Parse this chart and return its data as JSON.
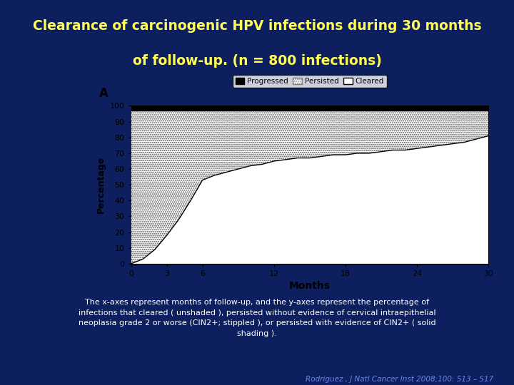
{
  "title_line1": "Clearance of carcinogenic HPV infections during 30 months",
  "title_line2": "of follow-up. (n = 800 infections)",
  "title_color": "#FFFF55",
  "bg_color": "#0d1f5e",
  "plot_bg_color": "#ffffff",
  "xlabel": "Months",
  "ylabel": "Percentage",
  "panel_label": "A",
  "x_ticks": [
    0,
    3,
    6,
    12,
    18,
    24,
    30
  ],
  "y_ticks": [
    0,
    10,
    20,
    30,
    40,
    50,
    60,
    70,
    80,
    90,
    100
  ],
  "months": [
    0,
    1,
    2,
    3,
    4,
    5,
    6,
    7,
    8,
    9,
    10,
    11,
    12,
    13,
    14,
    15,
    16,
    17,
    18,
    19,
    20,
    21,
    22,
    23,
    24,
    25,
    26,
    27,
    28,
    29,
    30
  ],
  "cleared_curve": [
    0,
    3,
    9,
    18,
    28,
    40,
    53,
    56,
    58,
    60,
    62,
    63,
    65,
    66,
    67,
    67,
    68,
    69,
    69,
    70,
    70,
    71,
    72,
    72,
    73,
    74,
    75,
    76,
    77,
    79,
    81
  ],
  "persisted_top": 97,
  "progressed_band": 3,
  "legend_labels": [
    "Progressed",
    "Persisted",
    "Cleared"
  ],
  "footer_text": "The x-axes represent months of follow-up, and the y-axes represent the percentage of\ninfections that cleared ( unshaded ), persisted without evidence of cervical intraepithelial\nneoplasia grade 2 or worse (CIN2+; stippled ), or persisted with evidence of CIN2+ ( solid\nshading ).",
  "ref_text": "Rodriguez , J Natl Cancer Inst 2008;100: 513 – 517",
  "footer_color": "#ffffff",
  "ref_color": "#6688ee",
  "separator_color": "#aaaaaa",
  "chart_box_color": "#f0f0f0"
}
